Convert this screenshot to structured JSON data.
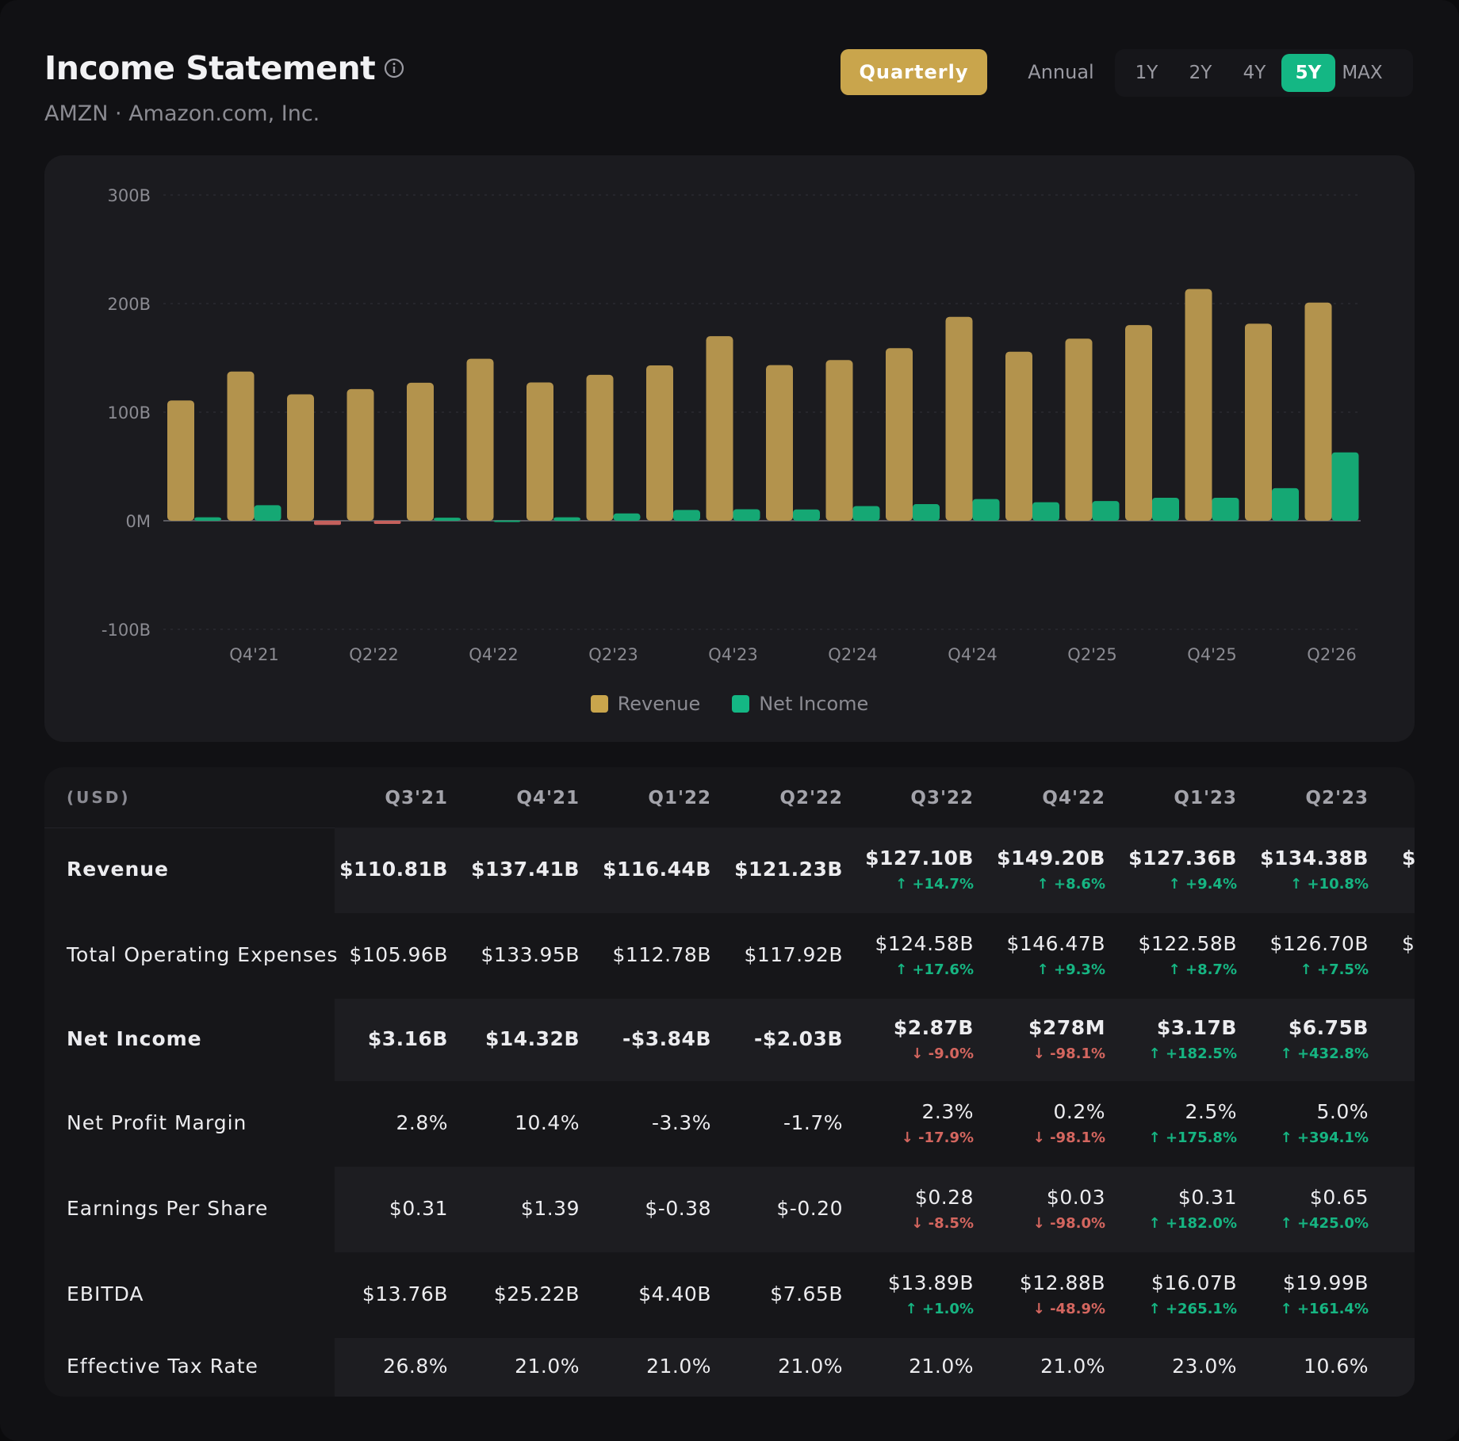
{
  "header": {
    "title": "Income Statement",
    "subtitle": "AMZN · Amazon.com, Inc.",
    "period_buttons": [
      "Quarterly",
      "Annual"
    ],
    "period_active": "Quarterly",
    "ranges": [
      "1Y",
      "2Y",
      "4Y",
      "5Y",
      "MAX"
    ],
    "range_active": "5Y"
  },
  "colors": {
    "revenue": "#b3934d",
    "net_income_positive": "#15a874",
    "net_income_negative": "#c4605c",
    "accent_gold": "#c9a54c",
    "accent_green": "#14b784"
  },
  "chart_data": {
    "type": "bar",
    "title": "",
    "xlabel": "",
    "ylabel": "",
    "ylim": [
      -100,
      300
    ],
    "y_ticks": [
      300,
      200,
      100,
      0,
      -100
    ],
    "y_tick_labels": [
      "300B",
      "200B",
      "100B",
      "0M",
      "-100B"
    ],
    "grid": true,
    "legend_position": "bottom-center",
    "categories": [
      "Q3'21",
      "Q4'21",
      "Q1'22",
      "Q2'22",
      "Q3'22",
      "Q4'22",
      "Q1'23",
      "Q2'23",
      "Q3'23",
      "Q4'23",
      "Q1'24",
      "Q2'24",
      "Q3'24",
      "Q4'24",
      "Q1'25",
      "Q2'25",
      "Q3'25",
      "Q4'25",
      "Q1'26",
      "Q2'26"
    ],
    "x_tick_labels": {
      "1": "Q4'21",
      "3": "Q2'22",
      "5": "Q4'22",
      "7": "Q2'23",
      "9": "Q4'23",
      "11": "Q2'24",
      "13": "Q4'24",
      "15": "Q2'25",
      "17": "Q4'25",
      "19": "Q2'26"
    },
    "series": [
      {
        "name": "Revenue",
        "values": [
          110.81,
          137.41,
          116.44,
          121.23,
          127.1,
          149.2,
          127.36,
          134.38,
          143.1,
          170.0,
          143.3,
          148.0,
          158.9,
          187.8,
          155.7,
          167.7,
          180.2,
          213.4,
          181.5,
          200.9
        ]
      },
      {
        "name": "Net Income",
        "values": [
          3.16,
          14.32,
          -3.84,
          -2.03,
          2.87,
          0.278,
          3.17,
          6.75,
          9.9,
          10.6,
          10.4,
          13.5,
          15.3,
          20.0,
          17.1,
          18.2,
          21.2,
          21.2,
          30.0,
          63.0
        ]
      }
    ]
  },
  "table": {
    "unit_label": "(USD)",
    "columns": [
      "Q3'21",
      "Q4'21",
      "Q1'22",
      "Q2'22",
      "Q3'22",
      "Q4'22",
      "Q1'23",
      "Q2'23"
    ],
    "rows": [
      {
        "label": "Revenue",
        "bold": true,
        "values": [
          "$110.81B",
          "$137.41B",
          "$116.44B",
          "$121.23B",
          "$127.10B",
          "$149.20B",
          "$127.36B",
          "$134.38B"
        ],
        "changes": [
          "",
          "",
          "",
          "",
          "↑ +14.7%",
          "↑ +8.6%",
          "↑ +9.4%",
          "↑ +10.8%"
        ],
        "dirs": [
          "",
          "",
          "",
          "",
          "up",
          "up",
          "up",
          "up"
        ],
        "trailing": "$"
      },
      {
        "label": "Total Operating Expenses",
        "bold": false,
        "values": [
          "$105.96B",
          "$133.95B",
          "$112.78B",
          "$117.92B",
          "$124.58B",
          "$146.47B",
          "$122.58B",
          "$126.70B"
        ],
        "changes": [
          "",
          "",
          "",
          "",
          "↑ +17.6%",
          "↑ +9.3%",
          "↑ +8.7%",
          "↑ +7.5%"
        ],
        "dirs": [
          "",
          "",
          "",
          "",
          "up",
          "up",
          "up",
          "up"
        ],
        "trailing": "$"
      },
      {
        "label": "Net Income",
        "bold": true,
        "values": [
          "$3.16B",
          "$14.32B",
          "-$3.84B",
          "-$2.03B",
          "$2.87B",
          "$278M",
          "$3.17B",
          "$6.75B"
        ],
        "changes": [
          "",
          "",
          "",
          "",
          "↓ -9.0%",
          "↓ -98.1%",
          "↑ +182.5%",
          "↑ +432.8%"
        ],
        "dirs": [
          "",
          "",
          "",
          "",
          "down",
          "down",
          "up",
          "up"
        ],
        "trailing": ""
      },
      {
        "label": "Net Profit Margin",
        "bold": false,
        "values": [
          "2.8%",
          "10.4%",
          "-3.3%",
          "-1.7%",
          "2.3%",
          "0.2%",
          "2.5%",
          "5.0%"
        ],
        "changes": [
          "",
          "",
          "",
          "",
          "↓ -17.9%",
          "↓ -98.1%",
          "↑ +175.8%",
          "↑ +394.1%"
        ],
        "dirs": [
          "",
          "",
          "",
          "",
          "down",
          "down",
          "up",
          "up"
        ],
        "trailing": ""
      },
      {
        "label": "Earnings Per Share",
        "bold": false,
        "values": [
          "$0.31",
          "$1.39",
          "$-0.38",
          "$-0.20",
          "$0.28",
          "$0.03",
          "$0.31",
          "$0.65"
        ],
        "changes": [
          "",
          "",
          "",
          "",
          "↓ -8.5%",
          "↓ -98.0%",
          "↑ +182.0%",
          "↑ +425.0%"
        ],
        "dirs": [
          "",
          "",
          "",
          "",
          "down",
          "down",
          "up",
          "up"
        ],
        "trailing": ""
      },
      {
        "label": "EBITDA",
        "bold": false,
        "values": [
          "$13.76B",
          "$25.22B",
          "$4.40B",
          "$7.65B",
          "$13.89B",
          "$12.88B",
          "$16.07B",
          "$19.99B"
        ],
        "changes": [
          "",
          "",
          "",
          "",
          "↑ +1.0%",
          "↓ -48.9%",
          "↑ +265.1%",
          "↑ +161.4%"
        ],
        "dirs": [
          "",
          "",
          "",
          "",
          "up",
          "down",
          "up",
          "up"
        ],
        "trailing": ""
      },
      {
        "label": "Effective Tax Rate",
        "bold": false,
        "values": [
          "26.8%",
          "21.0%",
          "21.0%",
          "21.0%",
          "21.0%",
          "21.0%",
          "23.0%",
          "10.6%"
        ],
        "changes": [
          "",
          "",
          "",
          "",
          "",
          "",
          "",
          ""
        ],
        "dirs": [
          "",
          "",
          "",
          "",
          "",
          "",
          "",
          ""
        ],
        "trailing": ""
      }
    ]
  }
}
